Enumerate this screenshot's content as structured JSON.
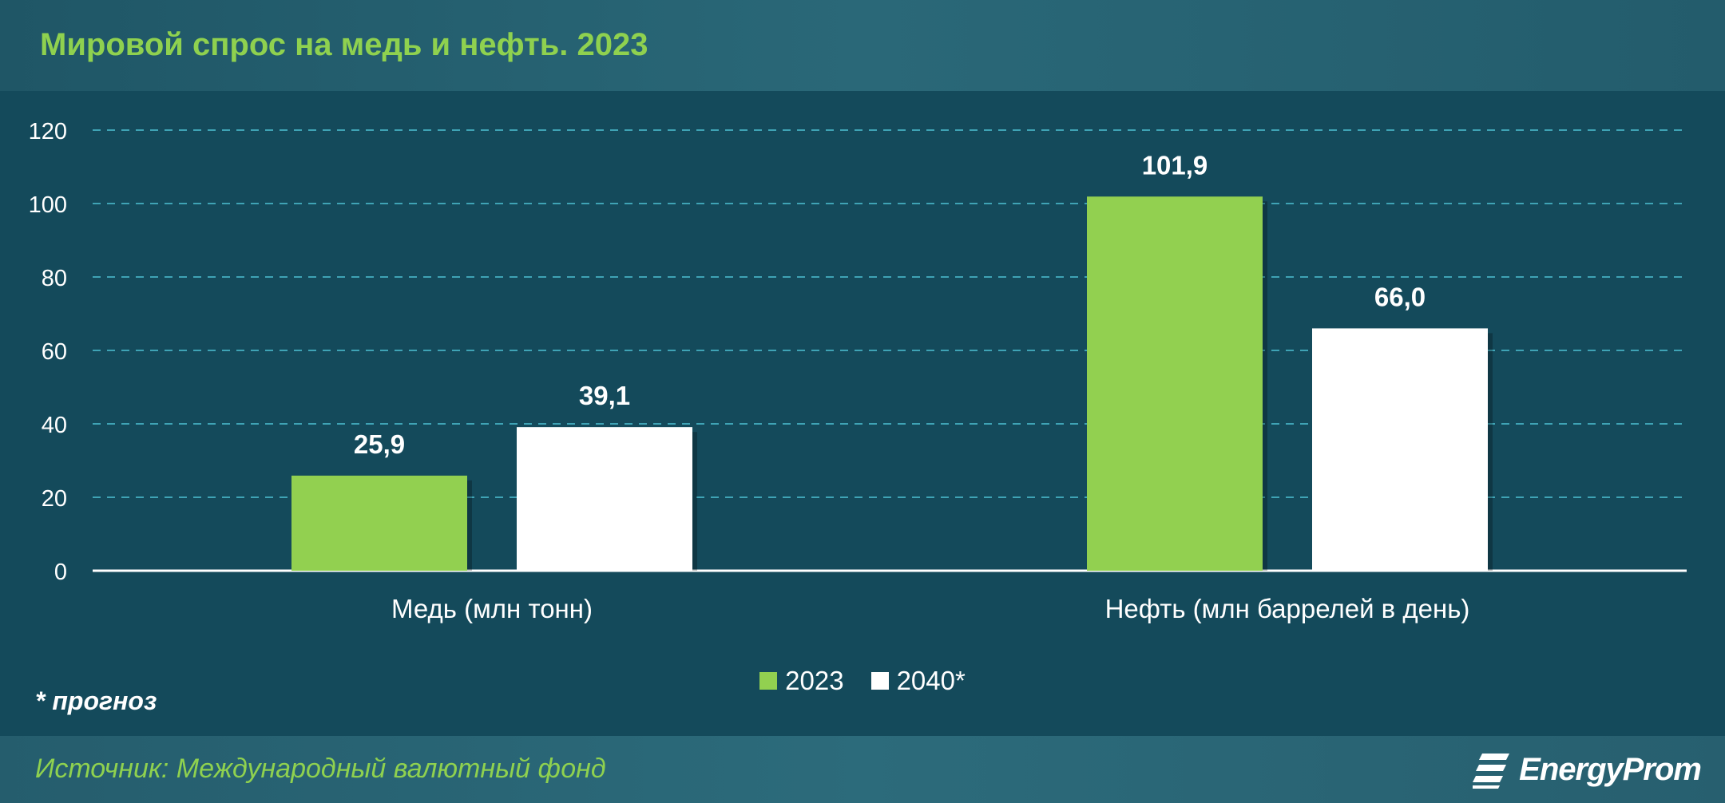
{
  "title": "Мировой спрос на медь и нефть. 2023",
  "footnote": "* прогноз",
  "source": "Источник: Международный валютный фонд",
  "logo": {
    "name": "EnergyProm",
    "icon": "energyprom-logo-icon"
  },
  "colors": {
    "series_2023": "#92d050",
    "series_2040": "#ffffff",
    "grid": "#3fa3b5",
    "axis": "#ffffff",
    "label": "#ffffff"
  },
  "chart_data": {
    "type": "bar",
    "categories": [
      "Медь (млн тонн)",
      "Нефть (млн баррелей в день)"
    ],
    "series": [
      {
        "name": "2023",
        "values": [
          25.9,
          101.9
        ],
        "labels": [
          "25,9",
          "101,9"
        ],
        "color": "#92d050"
      },
      {
        "name": "2040*",
        "values": [
          39.1,
          66.0
        ],
        "labels": [
          "39,1",
          "66,0"
        ],
        "color": "#ffffff"
      }
    ],
    "ylim": [
      0,
      120
    ],
    "yticks": [
      0,
      20,
      40,
      60,
      80,
      100,
      120
    ],
    "grid": true,
    "legend": "bottom-center"
  }
}
